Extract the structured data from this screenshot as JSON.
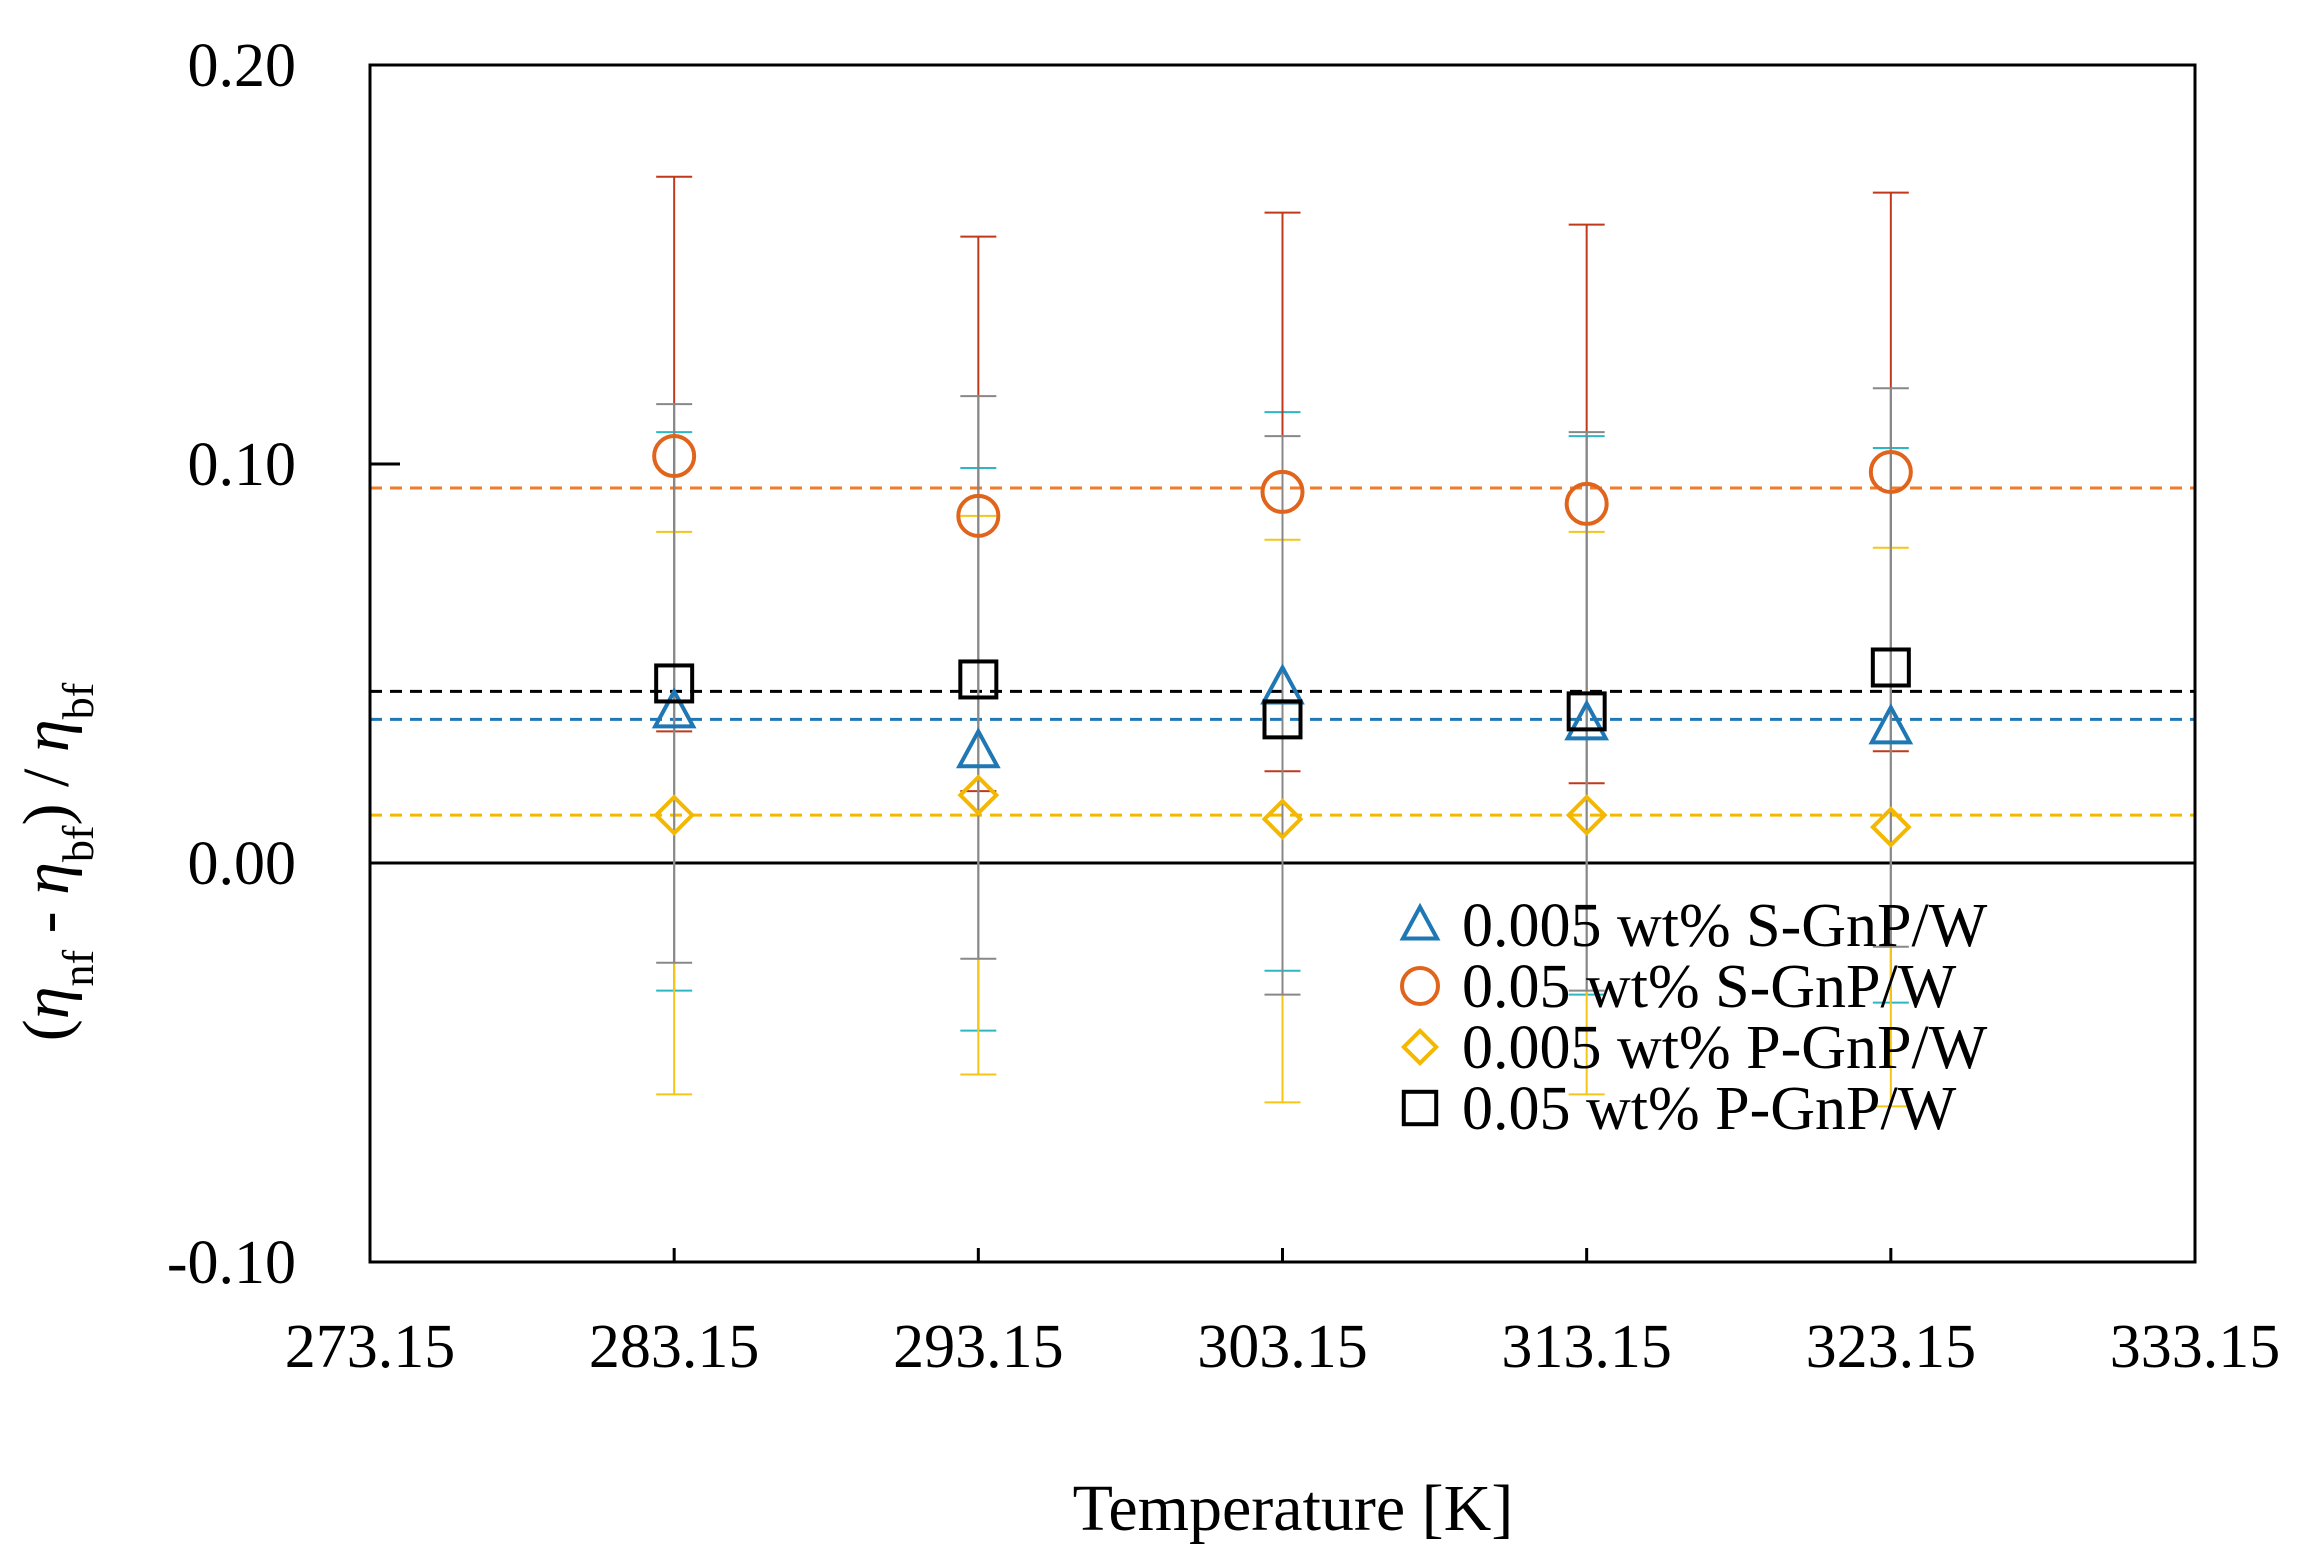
{
  "chart_data": {
    "type": "scatter",
    "xlabel": "Temperature [K]",
    "ylabel": {
      "prefix": "(",
      "eta1": "η",
      "sub1": "nf",
      "minus": " - ",
      "eta2": "η",
      "sub2": "bf",
      "mid": ") / ",
      "eta3": "η",
      "sub3": "bf"
    },
    "xlim": [
      273.15,
      333.15
    ],
    "ylim": [
      -0.1,
      0.2
    ],
    "x_ticks": [
      "273.15",
      "283.15",
      "293.15",
      "303.15",
      "313.15",
      "323.15",
      "333.15"
    ],
    "x_tick_values": [
      273.15,
      283.15,
      293.15,
      303.15,
      313.15,
      323.15,
      333.15
    ],
    "y_ticks": [
      "0.20",
      "0.10",
      "0.00",
      "-0.10"
    ],
    "y_tick_values": [
      0.2,
      0.1,
      0.0,
      -0.1
    ],
    "zero_line": 0.0,
    "series": [
      {
        "name": "0.005 wt% S-GnP/W",
        "marker": "triangle",
        "color": "#1f77b4",
        "error_color": "#2bb7c4",
        "x": [
          283.15,
          293.15,
          303.15,
          313.15,
          323.15
        ],
        "y": [
          0.038,
          0.028,
          0.044,
          0.035,
          0.034
        ],
        "err_low": [
          -0.032,
          -0.042,
          -0.027,
          -0.033,
          -0.035
        ],
        "err_high": [
          0.108,
          0.099,
          0.113,
          0.107,
          0.104
        ],
        "mean_line": 0.036
      },
      {
        "name": "0.05 wt% S-GnP/W",
        "marker": "circle",
        "color": "#e0641c",
        "error_color": "#c0391b",
        "x": [
          283.15,
          293.15,
          303.15,
          313.15,
          323.15
        ],
        "y": [
          0.102,
          0.087,
          0.093,
          0.09,
          0.098
        ],
        "err_low": [
          0.033,
          0.018,
          0.023,
          0.02,
          0.028
        ],
        "err_high": [
          0.172,
          0.157,
          0.163,
          0.16,
          0.168
        ],
        "mean_line": 0.094
      },
      {
        "name": "0.005 wt% P-GnP/W",
        "marker": "diamond",
        "color": "#f5b800",
        "error_color": "#f5c518",
        "x": [
          283.15,
          293.15,
          303.15,
          313.15,
          323.15
        ],
        "y": [
          0.012,
          0.017,
          0.011,
          0.012,
          0.009
        ],
        "err_low": [
          -0.058,
          -0.053,
          -0.06,
          -0.058,
          -0.061
        ],
        "err_high": [
          0.083,
          0.087,
          0.081,
          0.083,
          0.079
        ],
        "mean_line": 0.012
      },
      {
        "name": "0.05 wt% P-GnP/W",
        "marker": "square",
        "color": "#000000",
        "error_color": "#888888",
        "x": [
          283.15,
          293.15,
          303.15,
          313.15,
          323.15
        ],
        "y": [
          0.045,
          0.046,
          0.036,
          0.038,
          0.049
        ],
        "err_low": [
          -0.025,
          -0.024,
          -0.033,
          -0.032,
          -0.021
        ],
        "err_high": [
          0.115,
          0.117,
          0.107,
          0.108,
          0.119
        ],
        "mean_line": 0.043
      }
    ],
    "legend_position": "bottom-right"
  }
}
